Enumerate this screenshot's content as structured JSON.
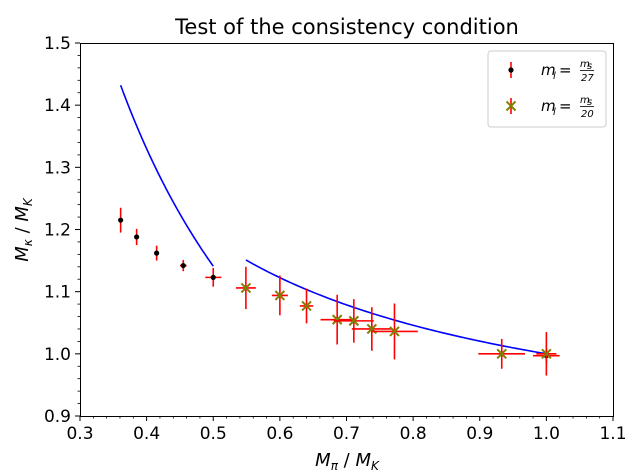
{
  "chart_data": {
    "type": "scatter",
    "title": "Test of the consistency condition",
    "xlabel": "M_π / M_K",
    "ylabel": "M_κ / M_K",
    "xlim": [
      0.3,
      1.1
    ],
    "ylim": [
      0.9,
      1.5
    ],
    "xticks": [
      "0.3",
      "0.4",
      "0.5",
      "0.6",
      "0.7",
      "0.8",
      "0.9",
      "1.0",
      "1.1"
    ],
    "yticks": [
      "0.9",
      "1.0",
      "1.1",
      "1.2",
      "1.3",
      "1.4",
      "1.5"
    ],
    "grid": false,
    "legend_position": "top-right",
    "legend": [
      {
        "label": "m_l = m_s/27",
        "main": "m",
        "sub": "l",
        "eq": "=",
        "num": "m",
        "num_sub": "s",
        "den": "27"
      },
      {
        "label": "m_l = m_s/20",
        "main": "m",
        "sub": "l",
        "eq": "=",
        "num": "m",
        "num_sub": "s",
        "den": "20"
      }
    ],
    "series": [
      {
        "name": "m_l = m_s/27",
        "marker": "dot",
        "color": "#000000",
        "errorbar_color": "#ff0000",
        "points": [
          {
            "x": 0.361,
            "y": 1.215,
            "xerr": 0.0,
            "yerr": 0.02
          },
          {
            "x": 0.385,
            "y": 1.188,
            "xerr": 0.0,
            "yerr": 0.013
          },
          {
            "x": 0.415,
            "y": 1.162,
            "xerr": 0.0,
            "yerr": 0.012
          },
          {
            "x": 0.455,
            "y": 1.142,
            "xerr": 0.005,
            "yerr": 0.009
          },
          {
            "x": 0.5,
            "y": 1.123,
            "xerr": 0.012,
            "yerr": 0.015
          },
          {
            "x": 1.0,
            "y": 0.997,
            "xerr": 0.02,
            "yerr": 0.012
          }
        ]
      },
      {
        "name": "m_l = m_s/20",
        "marker": "x",
        "color": "#808000",
        "errorbar_color": "#ff0000",
        "points": [
          {
            "x": 0.549,
            "y": 1.106,
            "xerr": 0.015,
            "yerr": 0.034
          },
          {
            "x": 0.6,
            "y": 1.094,
            "xerr": 0.012,
            "yerr": 0.032
          },
          {
            "x": 0.64,
            "y": 1.077,
            "xerr": 0.01,
            "yerr": 0.028
          },
          {
            "x": 0.686,
            "y": 1.055,
            "xerr": 0.025,
            "yerr": 0.04
          },
          {
            "x": 0.711,
            "y": 1.053,
            "xerr": 0.03,
            "yerr": 0.035
          },
          {
            "x": 0.738,
            "y": 1.04,
            "xerr": 0.03,
            "yerr": 0.035
          },
          {
            "x": 0.772,
            "y": 1.036,
            "xerr": 0.035,
            "yerr": 0.045
          },
          {
            "x": 0.933,
            "y": 1.0,
            "xerr": 0.035,
            "yerr": 0.024
          },
          {
            "x": 1.0,
            "y": 1.0,
            "xerr": 0.015,
            "yerr": 0.035
          }
        ]
      }
    ],
    "curves": [
      {
        "name": "fit-curve-low",
        "color": "#0000ff",
        "x_range": [
          0.361,
          0.5
        ],
        "y_start": 1.432,
        "y_end": 1.141
      },
      {
        "name": "fit-curve-high",
        "color": "#0000ff",
        "x_range": [
          0.549,
          1.0
        ],
        "y_start": 1.151,
        "y_end": 1.0
      }
    ]
  }
}
